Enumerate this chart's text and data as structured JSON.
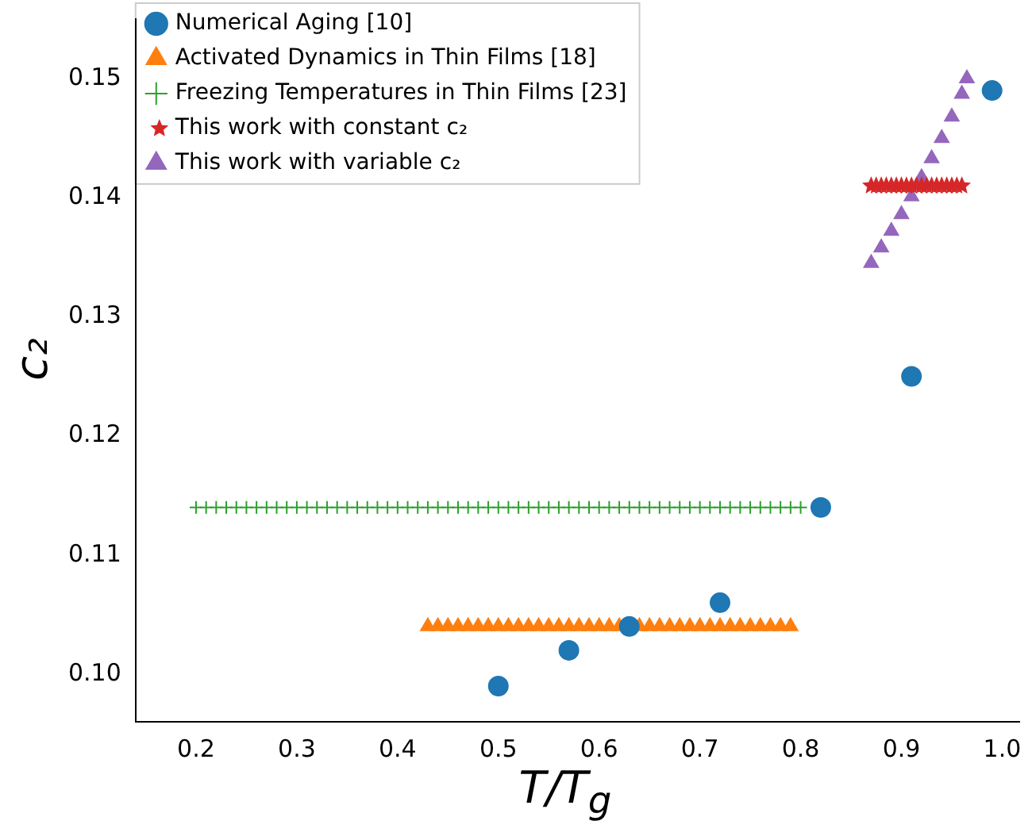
{
  "chart_data": {
    "type": "scatter",
    "xlabel": "T/T$_{g}$",
    "ylabel": "c₂",
    "xlim": [
      0.14,
      1.017
    ],
    "ylim": [
      0.096,
      0.155
    ],
    "xticks": [
      0.2,
      0.3,
      0.4,
      0.5,
      0.6,
      0.7,
      0.8,
      0.9,
      {
        "value": 1,
        "label": "1.0"
      }
    ],
    "yticks": [
      {
        "value": 0.1,
        "label": "0.10"
      },
      0.11,
      0.12,
      0.13,
      0.14,
      0.15
    ],
    "grid": false,
    "legend": "top left",
    "series": [
      {
        "name": "Numerical Aging [10]",
        "color": "#1f77b4",
        "marker": "circle",
        "x": [
          0.5,
          0.57,
          0.63,
          0.72,
          0.82,
          0.91,
          0.99
        ],
        "values": [
          0.099,
          0.102,
          0.104,
          0.106,
          0.114,
          0.125,
          0.149
        ]
      },
      {
        "name": "Activated Dynamics in Thin Films [18]",
        "color": "#ff7f0e",
        "marker": "triangle",
        "x": [
          0.43,
          0.44,
          0.45,
          0.46,
          0.47,
          0.48,
          0.49,
          0.5,
          0.51,
          0.52,
          0.53,
          0.54,
          0.55,
          0.56,
          0.57,
          0.58,
          0.59,
          0.6,
          0.61,
          0.62,
          0.64,
          0.65,
          0.66,
          0.67,
          0.68,
          0.69,
          0.7,
          0.71,
          0.72,
          0.73,
          0.74,
          0.75,
          0.76,
          0.77,
          0.78,
          0.79
        ],
        "values": [
          0.104,
          0.104,
          0.104,
          0.104,
          0.104,
          0.104,
          0.104,
          0.104,
          0.104,
          0.104,
          0.104,
          0.104,
          0.104,
          0.104,
          0.104,
          0.104,
          0.104,
          0.104,
          0.104,
          0.104,
          0.104,
          0.104,
          0.104,
          0.104,
          0.104,
          0.104,
          0.104,
          0.104,
          0.104,
          0.104,
          0.104,
          0.104,
          0.104,
          0.104,
          0.104,
          0.104
        ]
      },
      {
        "name": "Freezing Temperatures in Thin Films [23]",
        "color": "#2ca02c",
        "marker": "cross",
        "x": [
          0.2,
          0.21,
          0.22,
          0.23,
          0.24,
          0.25,
          0.26,
          0.27,
          0.28,
          0.29,
          0.3,
          0.31,
          0.32,
          0.33,
          0.34,
          0.35,
          0.36,
          0.37,
          0.38,
          0.39,
          0.4,
          0.41,
          0.42,
          0.43,
          0.44,
          0.45,
          0.46,
          0.47,
          0.48,
          0.49,
          0.5,
          0.51,
          0.52,
          0.53,
          0.54,
          0.55,
          0.56,
          0.57,
          0.58,
          0.59,
          0.6,
          0.61,
          0.62,
          0.63,
          0.64,
          0.65,
          0.66,
          0.67,
          0.68,
          0.69,
          0.7,
          0.71,
          0.72,
          0.73,
          0.74,
          0.75,
          0.76,
          0.77,
          0.78,
          0.79,
          0.8
        ],
        "values": [
          0.114,
          0.114,
          0.114,
          0.114,
          0.114,
          0.114,
          0.114,
          0.114,
          0.114,
          0.114,
          0.114,
          0.114,
          0.114,
          0.114,
          0.114,
          0.114,
          0.114,
          0.114,
          0.114,
          0.114,
          0.114,
          0.114,
          0.114,
          0.114,
          0.114,
          0.114,
          0.114,
          0.114,
          0.114,
          0.114,
          0.114,
          0.114,
          0.114,
          0.114,
          0.114,
          0.114,
          0.114,
          0.114,
          0.114,
          0.114,
          0.114,
          0.114,
          0.114,
          0.114,
          0.114,
          0.114,
          0.114,
          0.114,
          0.114,
          0.114,
          0.114,
          0.114,
          0.114,
          0.114,
          0.114,
          0.114,
          0.114,
          0.114,
          0.114,
          0.114,
          0.114
        ]
      },
      {
        "name": "This work with constant c₂",
        "color": "#d62728",
        "marker": "star",
        "x": [
          0.87,
          0.875,
          0.88,
          0.885,
          0.89,
          0.895,
          0.9,
          0.905,
          0.91,
          0.915,
          0.92,
          0.925,
          0.93,
          0.935,
          0.94,
          0.945,
          0.95,
          0.955,
          0.96
        ],
        "values": [
          0.141,
          0.141,
          0.141,
          0.141,
          0.141,
          0.141,
          0.141,
          0.141,
          0.141,
          0.141,
          0.141,
          0.141,
          0.141,
          0.141,
          0.141,
          0.141,
          0.141,
          0.141,
          0.141
        ]
      },
      {
        "name": "This work with variable c₂",
        "color": "#9467bd",
        "marker": "triangle",
        "x": [
          0.87,
          0.88,
          0.89,
          0.9,
          0.91,
          0.92,
          0.93,
          0.94,
          0.95,
          0.96,
          0.965
        ],
        "values": [
          0.1345,
          0.1358,
          0.1372,
          0.1386,
          0.1401,
          0.1417,
          0.1433,
          0.145,
          0.1468,
          0.1487,
          0.15
        ]
      }
    ]
  }
}
